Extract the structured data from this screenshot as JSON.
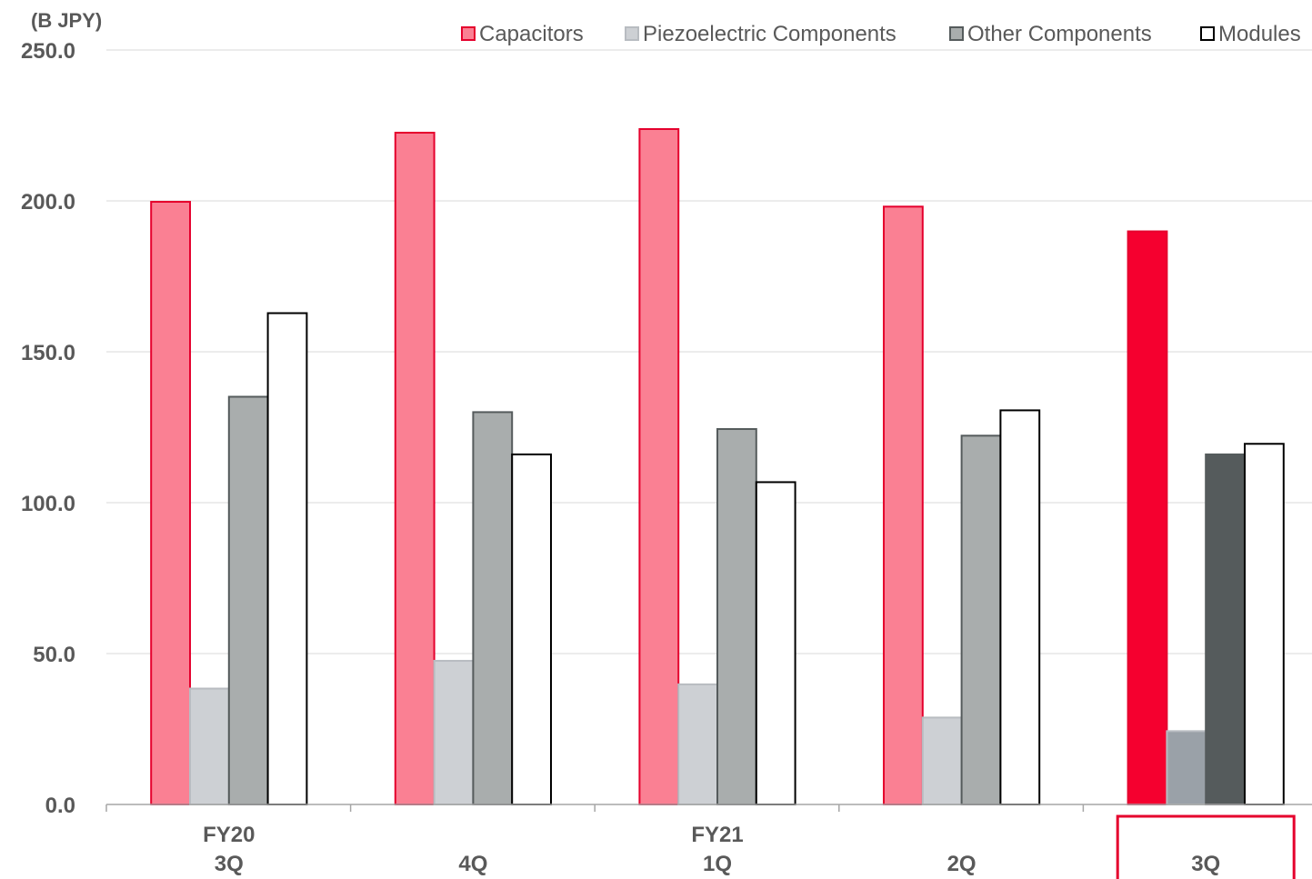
{
  "chart_data": {
    "type": "bar",
    "unit_label": "(B JPY)",
    "ylim": [
      0,
      250
    ],
    "y_ticks": [
      "0.0",
      "50.0",
      "100.0",
      "150.0",
      "200.0",
      "250.0"
    ],
    "grid": true,
    "legend_position": "top-right",
    "categories": [
      {
        "lines": [
          "FY20",
          "3Q"
        ]
      },
      {
        "lines": [
          "",
          "4Q"
        ]
      },
      {
        "lines": [
          "FY21",
          "1Q"
        ]
      },
      {
        "lines": [
          "",
          "2Q"
        ]
      },
      {
        "lines": [
          "",
          "3Q"
        ],
        "highlighted": true
      }
    ],
    "series": [
      {
        "name": "Capacitors",
        "values": [
          199.7,
          222.6,
          223.8,
          198.1,
          189.9
        ],
        "color": "#fa8093",
        "border": "#e5002d",
        "highlight_color": "#f5002f"
      },
      {
        "name": "Piezoelectric Components",
        "values": [
          38.4,
          47.6,
          39.8,
          28.8,
          24.3
        ],
        "color": "#cdd0d4",
        "border": "#b8bcc1",
        "highlight_color": "#9aa1a8"
      },
      {
        "name": "Other Components",
        "values": [
          135.1,
          130.0,
          124.4,
          122.2,
          116.0
        ],
        "color": "#a9adad",
        "border": "#555b5c",
        "highlight_color": "#555b5c"
      },
      {
        "name": "Modules",
        "values": [
          162.8,
          116.0,
          106.8,
          130.6,
          119.5
        ],
        "color": "#ffffff",
        "border": "#000000",
        "highlight_color": "#ffffff"
      }
    ],
    "highlight_box_color": "#e5002d"
  }
}
